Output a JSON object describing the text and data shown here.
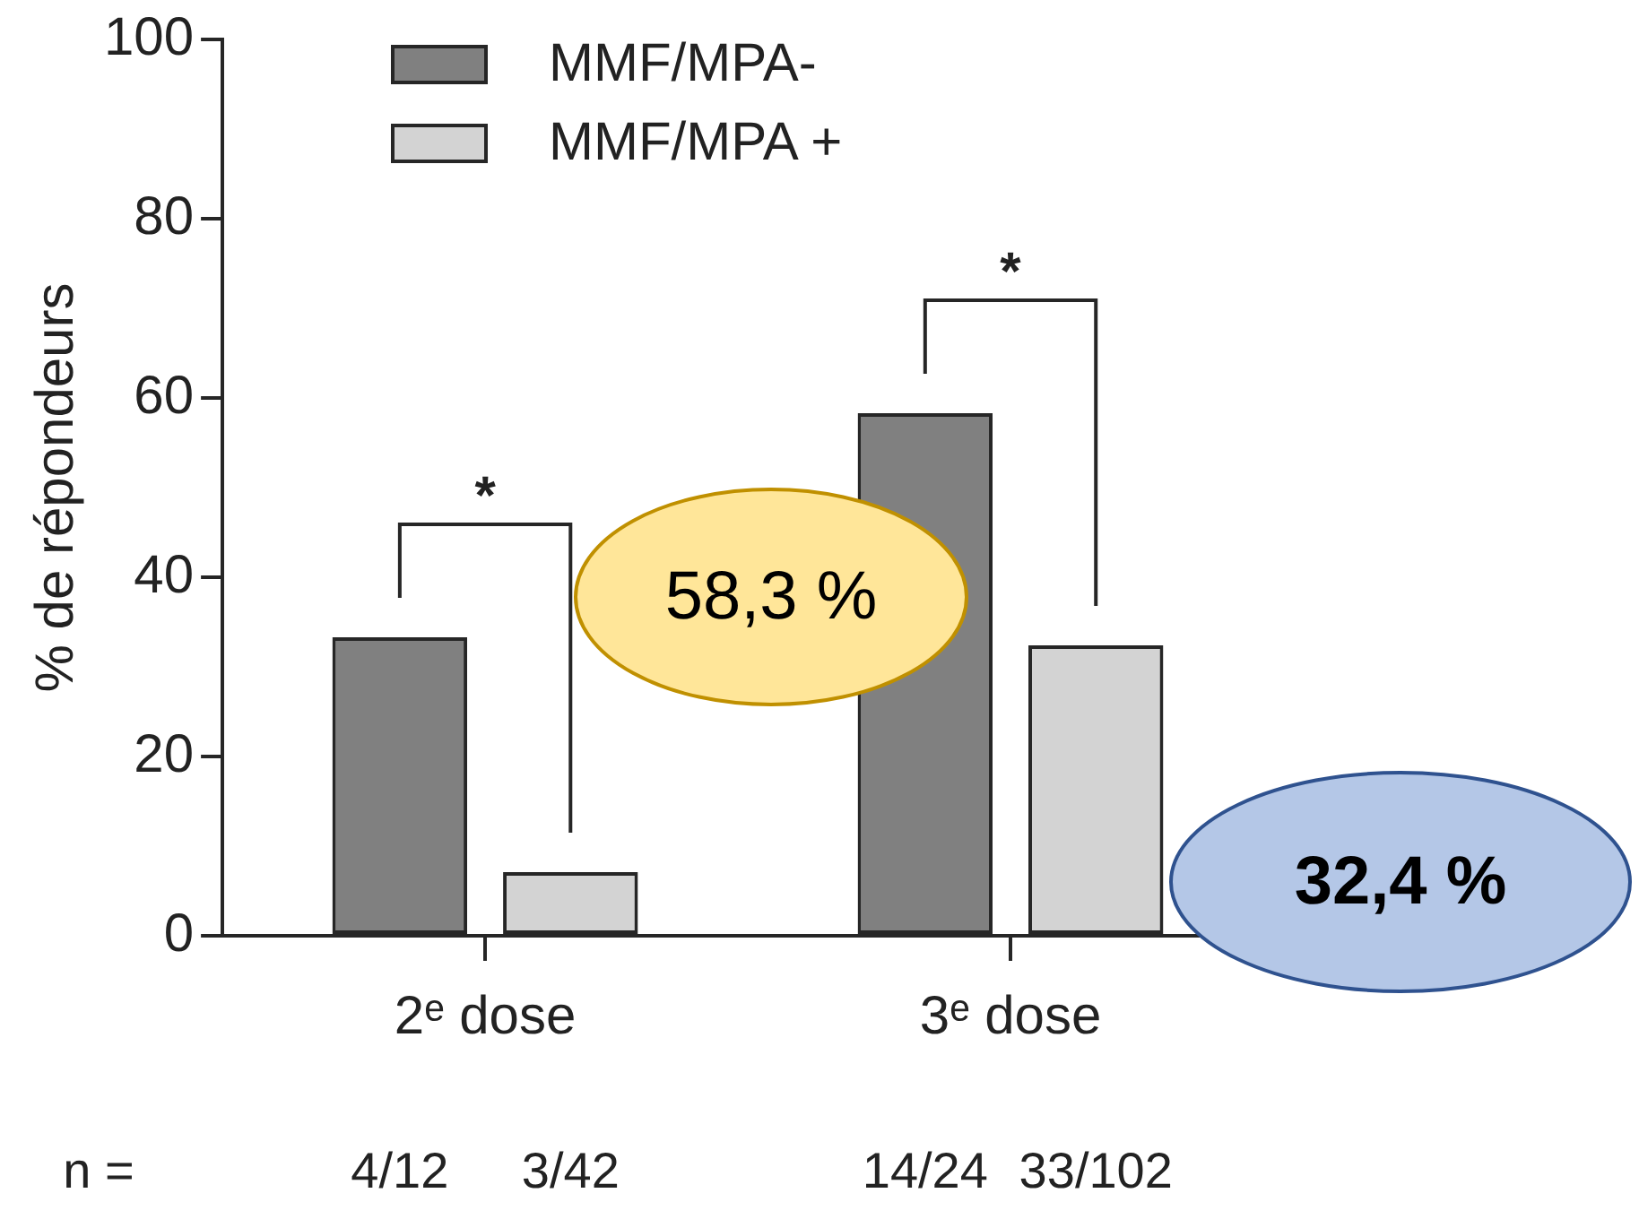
{
  "chart_data": {
    "type": "bar",
    "ylabel": "% de répondeurs",
    "categories": [
      "2ᵉ dose",
      "3ᵉ dose"
    ],
    "series": [
      {
        "name": "MMF/MPA-",
        "color": "#808080",
        "values": [
          33.3,
          58.3
        ]
      },
      {
        "name": "MMF/MPA +",
        "color": "#d3d3d3",
        "values": [
          7.1,
          32.4
        ]
      }
    ],
    "ylim": [
      0,
      100
    ],
    "yticks": [
      0,
      20,
      40,
      60,
      80,
      100
    ],
    "grid": false,
    "legend": "top left",
    "annotations": [
      "*",
      "*",
      "58,3 %",
      "32,4 %",
      "n =",
      "4/12",
      "3/42",
      "14/24",
      "33/102"
    ]
  }
}
